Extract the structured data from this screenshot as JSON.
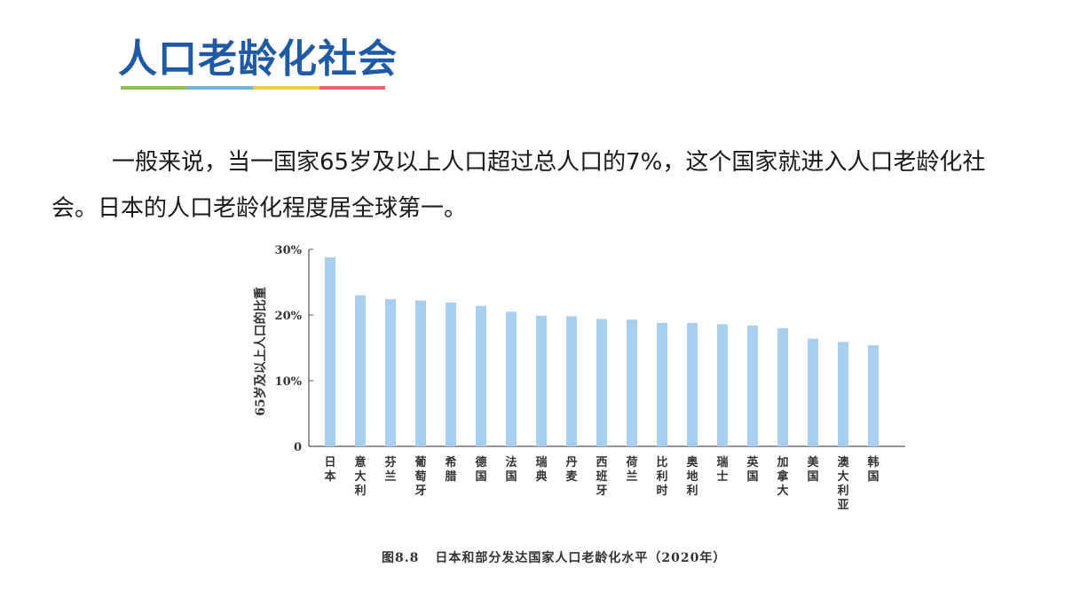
{
  "slide": {
    "title": "人口老龄化社会",
    "bar_colors": [
      "#8cc152",
      "#6fb7e0",
      "#f3c94a",
      "#e8676a"
    ],
    "paragraph": "一般来说，当一国家65岁及以上人口超过总人口的7%，这个国家就进入人口老龄化社会。日本的人口老龄化程度居全球第一。",
    "caption_number": "图8.8",
    "caption_text": "日本和部分发达国家人口老龄化水平（2020年）"
  },
  "chart_data": {
    "type": "bar",
    "title": "",
    "ylabel": "65岁及以上人口的比重",
    "xlabel": "",
    "ylim": [
      0,
      30
    ],
    "yticks": [
      0,
      10,
      20,
      30
    ],
    "ytick_labels": [
      "0",
      "10%",
      "20%",
      "30%"
    ],
    "categories": [
      "日本",
      "意大利",
      "芬兰",
      "葡萄牙",
      "希腊",
      "德国",
      "法国",
      "瑞典",
      "丹麦",
      "西班牙",
      "荷兰",
      "比利时",
      "奥地利",
      "瑞士",
      "英国",
      "加拿大",
      "美国",
      "澳大利亚",
      "韩国"
    ],
    "values": [
      28.8,
      23.0,
      22.4,
      22.2,
      21.9,
      21.4,
      20.5,
      19.9,
      19.8,
      19.4,
      19.3,
      18.8,
      18.8,
      18.6,
      18.4,
      18.0,
      16.4,
      15.9,
      15.4
    ],
    "bar_color": "#a9cff0",
    "grid": false,
    "legend": "none"
  }
}
